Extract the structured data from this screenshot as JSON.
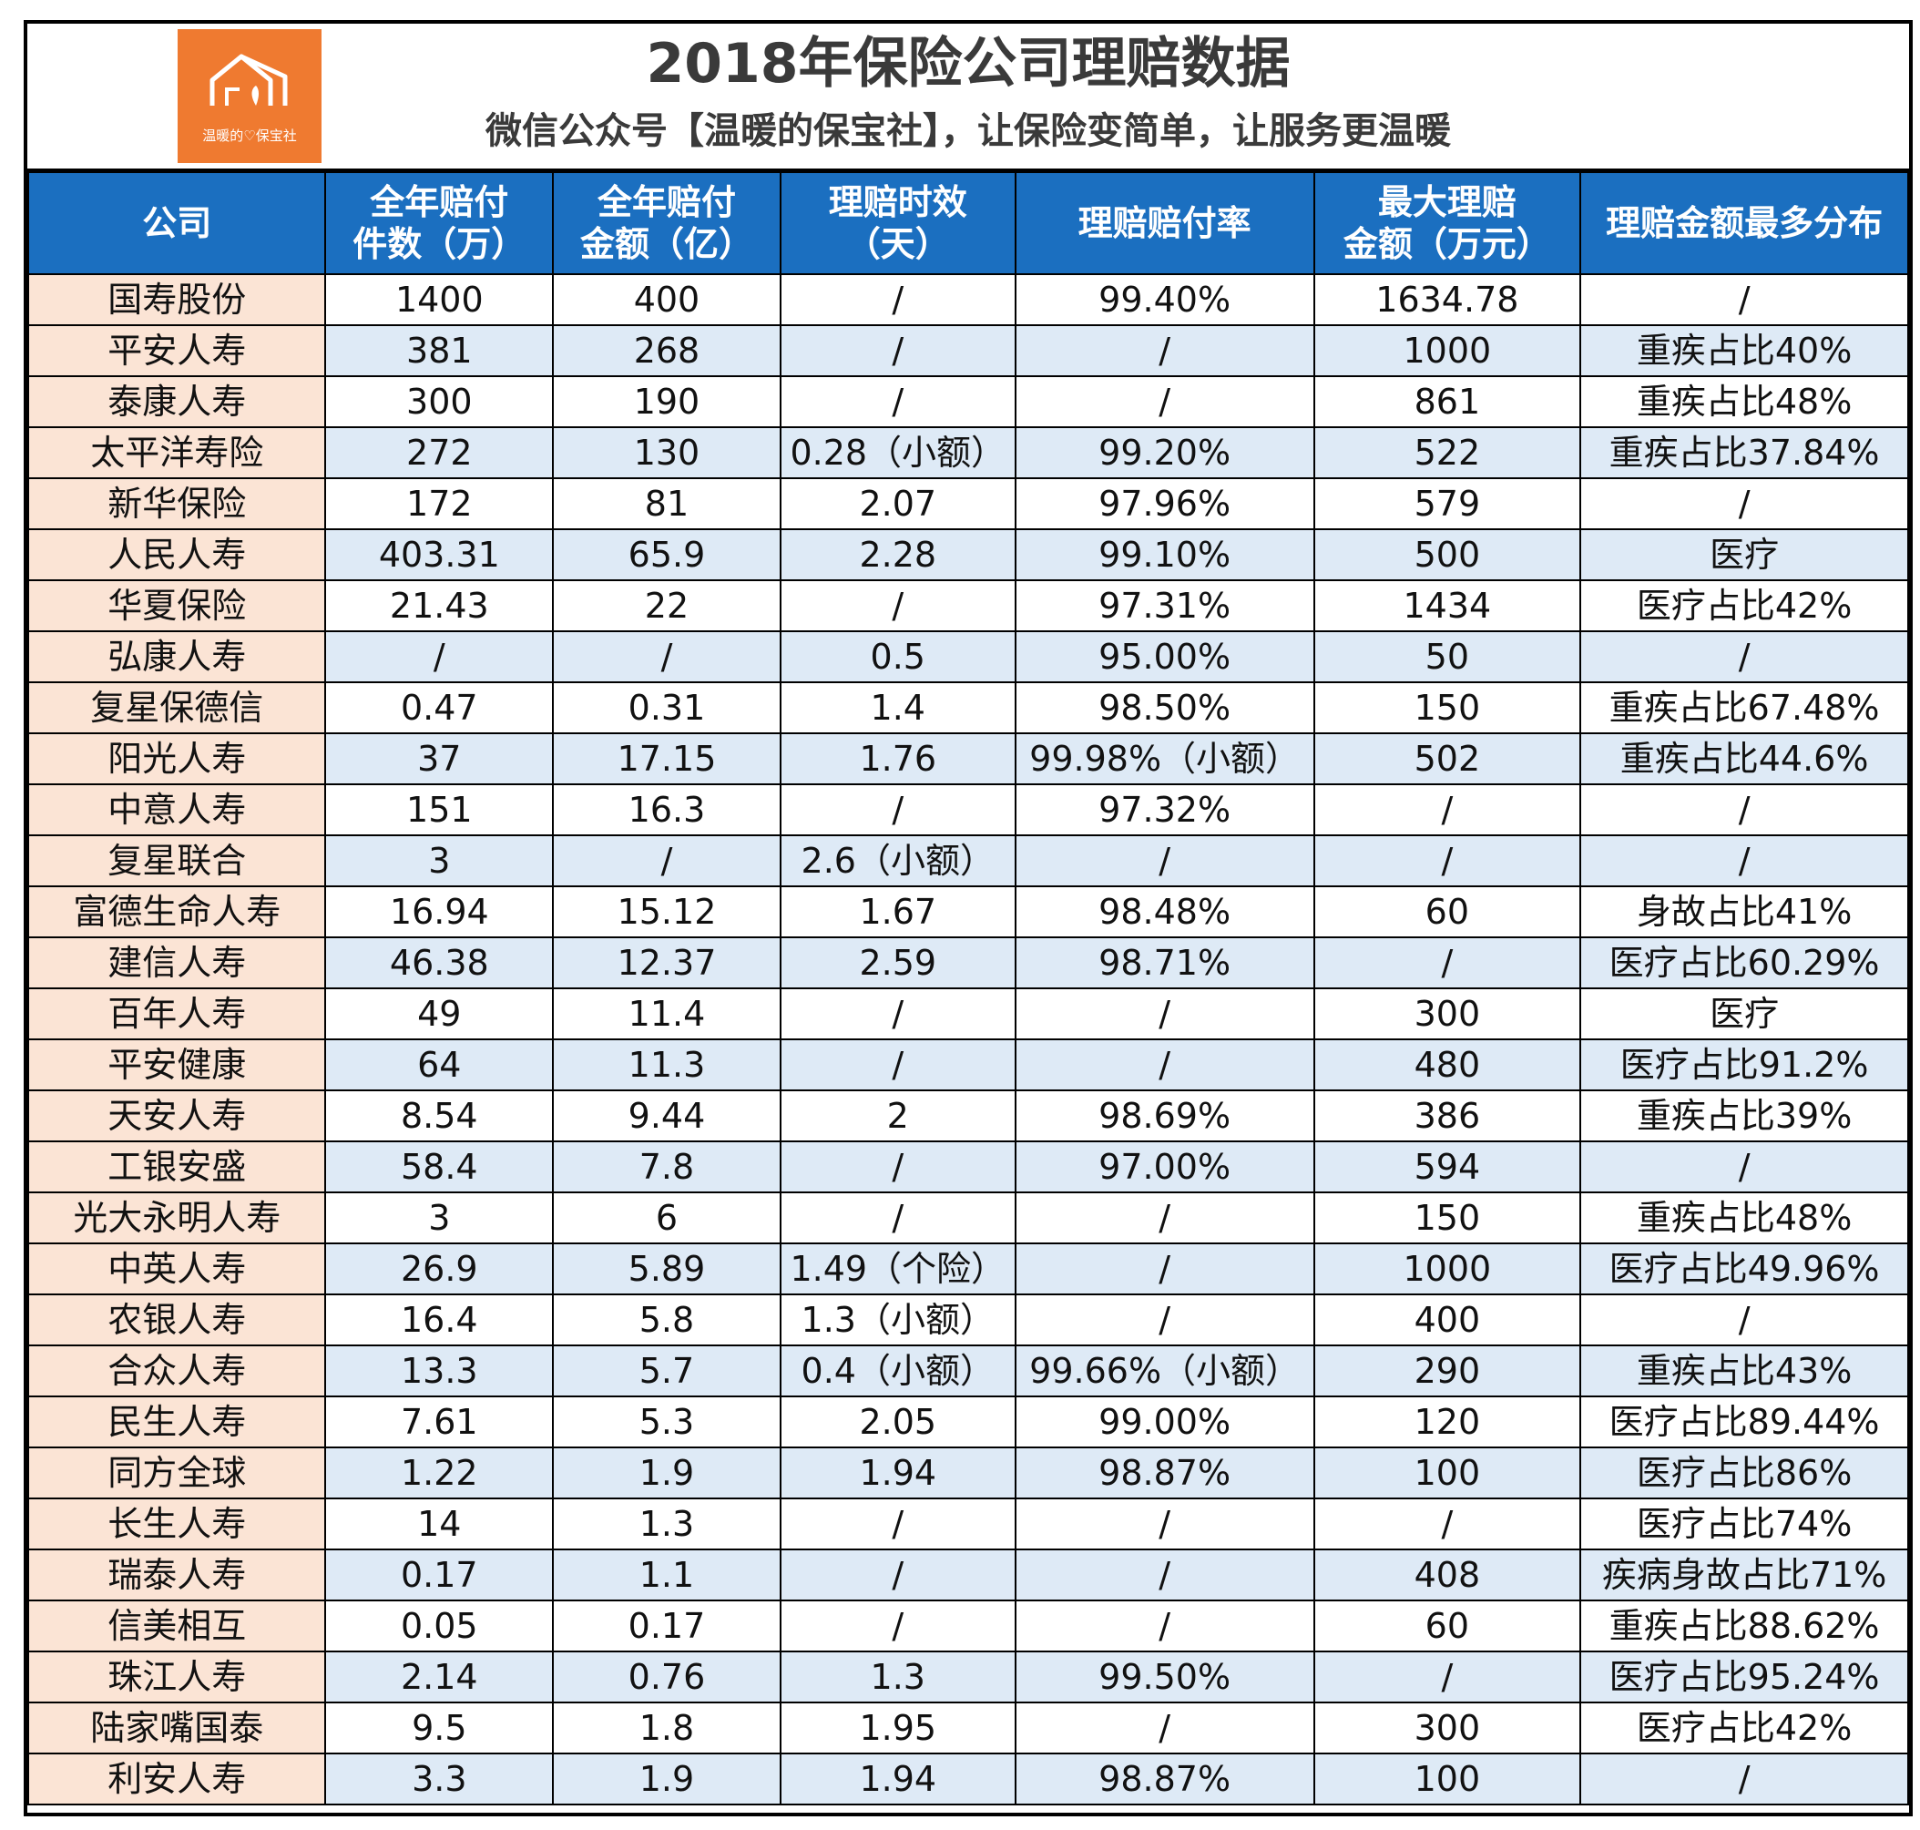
{
  "logo": {
    "text": "温暖的♡保宝社"
  },
  "title": "2018年保险公司理赔数据",
  "subtitle": "微信公众号【温暖的保宝社】，让保险变简单，让服务更温暖",
  "colors": {
    "header_bg": "#1b6fc0",
    "company_bg": "#fbe4d5",
    "row_alt_bg": "#deeaf6",
    "logo_bg": "#ef7a30"
  },
  "columns": [
    {
      "line1": "公司",
      "line2": ""
    },
    {
      "line1": "全年赔付",
      "line2": "件数（万）"
    },
    {
      "line1": "全年赔付",
      "line2": "金额（亿）"
    },
    {
      "line1": "理赔时效",
      "line2": "（天）"
    },
    {
      "line1": "理赔赔付率",
      "line2": ""
    },
    {
      "line1": "最大理赔",
      "line2": "金额（万元）"
    },
    {
      "line1": "理赔金额最多分布",
      "line2": ""
    }
  ],
  "rows": [
    [
      "国寿股份",
      "1400",
      "400",
      "/",
      "99.40%",
      "1634.78",
      "/"
    ],
    [
      "平安人寿",
      "381",
      "268",
      "/",
      "/",
      "1000",
      "重疾占比40%"
    ],
    [
      "泰康人寿",
      "300",
      "190",
      "/",
      "/",
      "861",
      "重疾占比48%"
    ],
    [
      "太平洋寿险",
      "272",
      "130",
      "0.28（小额）",
      "99.20%",
      "522",
      "重疾占比37.84%"
    ],
    [
      "新华保险",
      "172",
      "81",
      "2.07",
      "97.96%",
      "579",
      "/"
    ],
    [
      "人民人寿",
      "403.31",
      "65.9",
      "2.28",
      "99.10%",
      "500",
      "医疗"
    ],
    [
      "华夏保险",
      "21.43",
      "22",
      "/",
      "97.31%",
      "1434",
      "医疗占比42%"
    ],
    [
      "弘康人寿",
      "/",
      "/",
      "0.5",
      "95.00%",
      "50",
      "/"
    ],
    [
      "复星保德信",
      "0.47",
      "0.31",
      "1.4",
      "98.50%",
      "150",
      "重疾占比67.48%"
    ],
    [
      "阳光人寿",
      "37",
      "17.15",
      "1.76",
      "99.98%（小额）",
      "502",
      "重疾占比44.6%"
    ],
    [
      "中意人寿",
      "151",
      "16.3",
      "/",
      "97.32%",
      "/",
      "/"
    ],
    [
      "复星联合",
      "3",
      "/",
      "2.6（小额）",
      "/",
      "/",
      "/"
    ],
    [
      "富德生命人寿",
      "16.94",
      "15.12",
      "1.67",
      "98.48%",
      "60",
      "身故占比41%"
    ],
    [
      "建信人寿",
      "46.38",
      "12.37",
      "2.59",
      "98.71%",
      "/",
      "医疗占比60.29%"
    ],
    [
      "百年人寿",
      "49",
      "11.4",
      "/",
      "/",
      "300",
      "医疗"
    ],
    [
      "平安健康",
      "64",
      "11.3",
      "/",
      "/",
      "480",
      "医疗占比91.2%"
    ],
    [
      "天安人寿",
      "8.54",
      "9.44",
      "2",
      "98.69%",
      "386",
      "重疾占比39%"
    ],
    [
      "工银安盛",
      "58.4",
      "7.8",
      "/",
      "97.00%",
      "594",
      "/"
    ],
    [
      "光大永明人寿",
      "3",
      "6",
      "/",
      "/",
      "150",
      "重疾占比48%"
    ],
    [
      "中英人寿",
      "26.9",
      "5.89",
      "1.49（个险）",
      "/",
      "1000",
      "医疗占比49.96%"
    ],
    [
      "农银人寿",
      "16.4",
      "5.8",
      "1.3（小额）",
      "/",
      "400",
      "/"
    ],
    [
      "合众人寿",
      "13.3",
      "5.7",
      "0.4（小额）",
      "99.66%（小额）",
      "290",
      "重疾占比43%"
    ],
    [
      "民生人寿",
      "7.61",
      "5.3",
      "2.05",
      "99.00%",
      "120",
      "医疗占比89.44%"
    ],
    [
      "同方全球",
      "1.22",
      "1.9",
      "1.94",
      "98.87%",
      "100",
      "医疗占比86%"
    ],
    [
      "长生人寿",
      "14",
      "1.3",
      "/",
      "/",
      "/",
      "医疗占比74%"
    ],
    [
      "瑞泰人寿",
      "0.17",
      "1.1",
      "/",
      "/",
      "408",
      "疾病身故占比71%"
    ],
    [
      "信美相互",
      "0.05",
      "0.17",
      "/",
      "/",
      "60",
      "重疾占比88.62%"
    ],
    [
      "珠江人寿",
      "2.14",
      "0.76",
      "1.3",
      "99.50%",
      "/",
      "医疗占比95.24%"
    ],
    [
      "陆家嘴国泰",
      "9.5",
      "1.8",
      "1.95",
      "/",
      "300",
      "医疗占比42%"
    ],
    [
      "利安人寿",
      "3.3",
      "1.9",
      "1.94",
      "98.87%",
      "100",
      "/"
    ]
  ]
}
